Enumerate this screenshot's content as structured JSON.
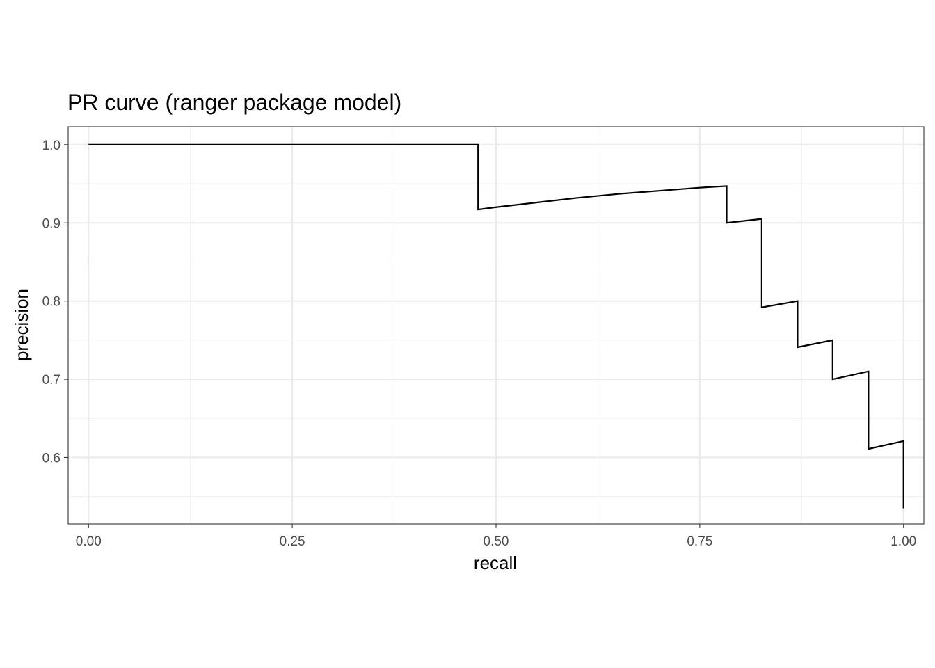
{
  "chart_data": {
    "type": "line",
    "title": "PR curve (ranger package model)",
    "xlabel": "recall",
    "ylabel": "precision",
    "xlim": [
      -0.025,
      1.025
    ],
    "ylim": [
      0.515,
      1.023
    ],
    "x_ticks": [
      0.0,
      0.25,
      0.5,
      0.75,
      1.0
    ],
    "x_tick_labels": [
      "0.00",
      "0.25",
      "0.50",
      "0.75",
      "1.00"
    ],
    "x_minor_ticks": [
      0.125,
      0.375,
      0.625,
      0.875
    ],
    "y_ticks": [
      0.6,
      0.7,
      0.8,
      0.9,
      1.0
    ],
    "y_tick_labels": [
      "0.6",
      "0.7",
      "0.8",
      "0.9",
      "1.0"
    ],
    "y_minor_ticks": [
      0.55,
      0.65,
      0.75,
      0.85,
      0.95
    ],
    "grid": true,
    "series": [
      {
        "color": "#000000",
        "x": [
          0.0,
          0.478,
          0.478,
          0.5,
          0.55,
          0.6,
          0.65,
          0.7,
          0.75,
          0.783,
          0.783,
          0.826,
          0.826,
          0.87,
          0.87,
          0.913,
          0.913,
          0.957,
          0.957,
          1.0,
          1.0
        ],
        "y": [
          1.0,
          1.0,
          0.917,
          0.92,
          0.926,
          0.932,
          0.937,
          0.941,
          0.945,
          0.947,
          0.9,
          0.905,
          0.792,
          0.8,
          0.741,
          0.75,
          0.7,
          0.71,
          0.611,
          0.621,
          0.535
        ]
      }
    ]
  }
}
